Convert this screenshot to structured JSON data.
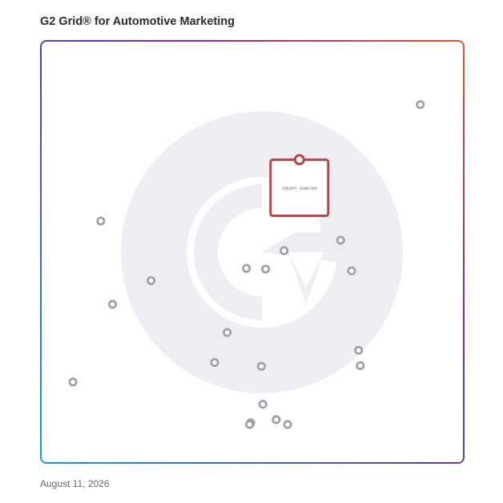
{
  "title": "G2 Grid® for Automotive Marketing",
  "date": "August 11, 2026",
  "chart_data": {
    "type": "scatter",
    "chart_style": "quadrant grid",
    "x_range": [
      0,
      1
    ],
    "y_range": [
      0,
      1
    ],
    "quadrant_dividers": {
      "x": 0.5,
      "y": 0.5
    },
    "colors": {
      "frame_top_left": "#5b3fa8",
      "frame_top_right": "#e8542a",
      "frame_bottom_left": "#1a9ad6",
      "frame_bottom_right": "#8a2a8f",
      "marker": "#9a9ea6",
      "highlight": "#b5474b",
      "watermark": "#eceef1"
    },
    "highlighted_product": {
      "x": 0.62,
      "y": 0.76,
      "label": "GOLISTA · Guide Ford",
      "logo_shown": true
    },
    "points": [
      {
        "x": 0.928,
        "y": 0.918
      },
      {
        "x": 0.114,
        "y": 0.584
      },
      {
        "x": 0.242,
        "y": 0.413
      },
      {
        "x": 0.144,
        "y": 0.345
      },
      {
        "x": 0.043,
        "y": 0.122
      },
      {
        "x": 0.485,
        "y": 0.448
      },
      {
        "x": 0.534,
        "y": 0.446
      },
      {
        "x": 0.436,
        "y": 0.264
      },
      {
        "x": 0.581,
        "y": 0.499
      },
      {
        "x": 0.725,
        "y": 0.529
      },
      {
        "x": 0.753,
        "y": 0.441
      },
      {
        "x": 0.771,
        "y": 0.213
      },
      {
        "x": 0.775,
        "y": 0.169
      },
      {
        "x": 0.404,
        "y": 0.178
      },
      {
        "x": 0.523,
        "y": 0.167
      },
      {
        "x": 0.527,
        "y": 0.058
      },
      {
        "x": 0.496,
        "y": 0.005
      },
      {
        "x": 0.561,
        "y": 0.014
      },
      {
        "x": 0.493,
        "y": 0.0
      },
      {
        "x": 0.59,
        "y": 0.0
      }
    ]
  }
}
